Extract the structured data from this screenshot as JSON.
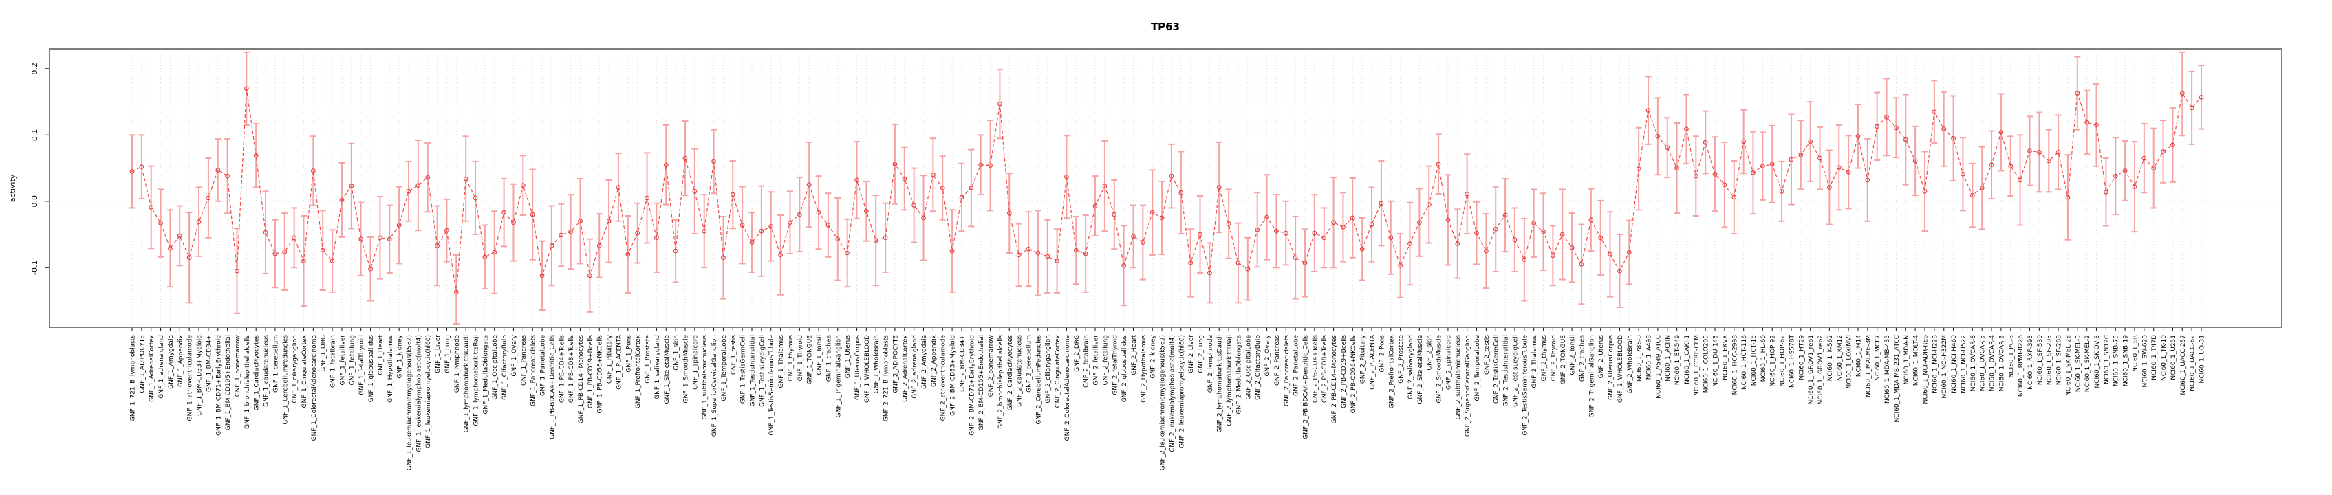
{
  "title": "TP63",
  "y_axis": {
    "label": "activity",
    "tick_labels": [
      "0.2",
      "0.1",
      "0.0",
      "-0.1"
    ],
    "tick_values": [
      0.2,
      0.1,
      0.0,
      -0.1
    ]
  },
  "style": {
    "line_color": "#ee4b4b",
    "point_color": "#e24646",
    "error_bar_color": "#f5a2a2",
    "grid_color": "#dcdcdc",
    "zero_line_color": "#c8c8c8",
    "frame_color": "#7d7d7d",
    "background": "#ffffff"
  },
  "chart_data": {
    "type": "line",
    "title": "TP63",
    "xlabel": "",
    "ylabel": "activity",
    "ylim": [
      -0.19,
      0.23
    ],
    "grid": "vertical-dotted-per-category-plus-zero-line",
    "legend_position": "none",
    "point_style": "open-circle-with-error-bars-dashed-connecting-line",
    "category_groups": [
      {
        "prefix": "GNF_1_",
        "tissue_set": "gnf"
      },
      {
        "prefix": "GNF_2_",
        "tissue_set": "gnf"
      },
      {
        "prefix": "NCI60_1_",
        "tissue_set": "nci60"
      }
    ],
    "tissue_sets": {
      "gnf": [
        "721_B_lymphoblasts",
        "ADIPOCYTE",
        "AdrenalCortex",
        "adrenalgland",
        "Amygdala",
        "Appendix",
        "atrioventricularnode",
        "BM-CD33+Myeloid",
        "BM-CD34+",
        "BM-CD71+EarlyErythroid",
        "BM-CD105+Endothelial",
        "bonemarrow",
        "bronchialepithelialcells",
        "CardiacMyocytes",
        "caudatenucleus",
        "cerebellum",
        "CerebellumPeduncles",
        "ciliaryganglion",
        "CingulateCortex",
        "ColorectalAdenocarcinoma",
        "DRG",
        "fetalbrain",
        "fetalliver",
        "fetallung",
        "fetalThyroid",
        "globuspallidus",
        "Heart",
        "Hypothalamus",
        "kidney",
        "leukemiachronicmyelogenous(k562)",
        "leukemialymphoblastic(molt4)",
        "leukemiapromyelocytic(hl60)",
        "Liver",
        "Lung",
        "lymphnode",
        "lymphomaburkittsDaudi",
        "lymphomaburkittsRaji",
        "MedullaOblongata",
        "OccipitalLobe",
        "OlfactoryBulb",
        "Ovary",
        "Pancreas",
        "PancreaticIslets",
        "ParietalLobe",
        "PB-BDCA4+Dentritic_Cells",
        "PB-CD4+Tcells",
        "PB-CD8+Tcells",
        "PB-CD14+Monocytes",
        "PB-CD19+Bcells",
        "PB-CD56+NKCells",
        "Pituitary",
        "PLACENTA",
        "Pons",
        "PrefrontalCortex",
        "Prostate",
        "salivarygland",
        "SkeletalMuscle",
        "skin",
        "SmoothMuscle",
        "spinalcord",
        "subthalamicnucleus",
        "SuperiorCervicalGanglion",
        "TemporalLobe",
        "testis",
        "TestisGermCell",
        "TestisInterstitial",
        "TestisLeydigCell",
        "TestisSeminiferousTubule",
        "Thalamus",
        "thymus",
        "Thyroid",
        "TONGUE",
        "Tonsil",
        "trachea",
        "TrigeminalGanglion",
        "Uterus",
        "UterusCorpus",
        "WHOLEBLOOD",
        "WholeBrain"
      ],
      "nci60": [
        "786-0",
        "A498",
        "A549_ATCC",
        "ACHN",
        "BT-549",
        "CAKI-1",
        "CCRF-CEM",
        "COLO205",
        "DU-145",
        "EKVX",
        "HCC-2998",
        "HCT-116",
        "HCT-15",
        "HL-60",
        "HOP-92",
        "HOP-62",
        "HS578T",
        "HT29",
        "IGROV1_rep1",
        "IGROV1_rep2",
        "K-562",
        "KM12",
        "LOXIMVI",
        "M14",
        "MALME-3M",
        "MCF7",
        "MDA-MB-435",
        "MDA-MB-231_ATCC",
        "MDA-N",
        "MOLT-4",
        "NCI-ADR-RES",
        "NCI-H226",
        "NCI-H322M",
        "NCI-H460",
        "NCI-H522",
        "OVCAR-8",
        "OVCAR-5",
        "OVCAR-4",
        "OVCAR-3",
        "PC-3",
        "RPMI-8226",
        "RXF-393",
        "SF-539",
        "SF-295",
        "SF-268",
        "SK-MEL-28",
        "SK-MEL-5",
        "SK-MEL-2",
        "SK-OV-3",
        "SN12C",
        "SNB-75",
        "SNB-19",
        "SR",
        "SW-620",
        "T47D",
        "TK-10",
        "U251",
        "UACC-257",
        "UACC-62",
        "UO-31"
      ]
    },
    "values": [
      0.045,
      0.052,
      -0.009,
      -0.033,
      -0.071,
      -0.052,
      -0.085,
      -0.031,
      0.005,
      0.047,
      0.038,
      -0.105,
      0.17,
      0.069,
      -0.047,
      -0.079,
      -0.076,
      -0.055,
      -0.09,
      0.046,
      -0.074,
      -0.09,
      0.002,
      0.023,
      -0.057,
      -0.102,
      -0.055,
      -0.057,
      -0.036,
      0.015,
      0.024,
      0.036,
      -0.067,
      -0.044,
      -0.137,
      0.034,
      0.005,
      -0.084,
      -0.077,
      -0.017,
      -0.032,
      0.024,
      -0.02,
      -0.112,
      -0.067,
      -0.051,
      -0.046,
      -0.03,
      -0.112,
      -0.067,
      -0.03,
      0.021,
      -0.08,
      -0.048,
      0.005,
      -0.055,
      0.055,
      -0.075,
      0.065,
      0.015,
      -0.045,
      0.06,
      -0.085,
      0.01,
      -0.036,
      -0.062,
      -0.045,
      -0.038,
      -0.081,
      -0.032,
      -0.02,
      0.025,
      -0.017,
      -0.036,
      -0.057,
      -0.078,
      0.032,
      -0.015,
      -0.059,
      -0.055,
      0.056,
      0.034,
      -0.006,
      -0.025,
      0.04,
      0.02,
      -0.075,
      0.006,
      0.02,
      0.055,
      0.054,
      0.147,
      -0.018,
      -0.081,
      -0.072,
      -0.078,
      -0.083,
      -0.09,
      0.037,
      -0.074,
      -0.079,
      -0.007,
      0.023,
      -0.02,
      -0.097,
      -0.053,
      -0.062,
      -0.017,
      -0.025,
      0.038,
      0.013,
      -0.093,
      -0.05,
      -0.108,
      0.021,
      -0.034,
      -0.093,
      -0.102,
      -0.043,
      -0.024,
      -0.045,
      -0.048,
      -0.085,
      -0.093,
      -0.048,
      -0.055,
      -0.032,
      -0.039,
      -0.025,
      -0.072,
      -0.035,
      -0.003,
      -0.055,
      -0.097,
      -0.064,
      -0.032,
      -0.005,
      0.056,
      -0.028,
      -0.064,
      0.011,
      -0.048,
      -0.075,
      -0.042,
      -0.021,
      -0.058,
      -0.088,
      -0.033,
      -0.046,
      -0.082,
      -0.05,
      -0.07,
      -0.095,
      -0.028,
      -0.055,
      -0.08,
      -0.105,
      -0.077,
      0.049,
      0.137,
      0.098,
      0.081,
      0.05,
      0.109,
      0.038,
      0.089,
      0.041,
      0.025,
      0.006,
      0.09,
      0.043,
      0.053,
      0.056,
      0.015,
      0.063,
      0.07,
      0.09,
      0.065,
      0.021,
      0.051,
      0.044,
      0.098,
      0.032,
      0.113,
      0.127,
      0.111,
      0.093,
      0.061,
      0.015,
      0.135,
      0.109,
      0.095,
      0.041,
      0.009,
      0.02,
      0.055,
      0.104,
      0.053,
      0.032,
      0.076,
      0.074,
      0.061,
      0.074,
      0.006,
      0.163,
      0.119,
      0.115,
      0.014,
      0.038,
      0.046,
      0.022,
      0.065,
      0.05,
      0.075,
      0.085,
      0.163,
      0.141,
      0.157
    ],
    "errors": [
      0.055,
      0.048,
      0.062,
      0.051,
      0.058,
      0.045,
      0.068,
      0.052,
      0.06,
      0.047,
      0.056,
      0.064,
      0.055,
      0.048,
      0.062,
      0.051,
      0.058,
      0.045,
      0.068,
      0.052,
      0.06,
      0.047,
      0.056,
      0.064,
      0.055,
      0.048,
      0.062,
      0.051,
      0.058,
      0.045,
      0.068,
      0.052,
      0.06,
      0.047,
      0.056,
      0.064,
      0.055,
      0.048,
      0.062,
      0.051,
      0.058,
      0.045,
      0.068,
      0.052,
      0.06,
      0.047,
      0.056,
      0.064,
      0.055,
      0.048,
      0.062,
      0.051,
      0.058,
      0.045,
      0.068,
      0.052,
      0.06,
      0.047,
      0.056,
      0.064,
      0.055,
      0.048,
      0.062,
      0.051,
      0.058,
      0.045,
      0.068,
      0.052,
      0.06,
      0.047,
      0.056,
      0.064,
      0.055,
      0.048,
      0.062,
      0.051,
      0.058,
      0.045,
      0.068,
      0.052,
      0.06,
      0.047,
      0.056,
      0.064,
      0.055,
      0.048,
      0.062,
      0.051,
      0.058,
      0.045,
      0.068,
      0.052,
      0.06,
      0.047,
      0.056,
      0.064,
      0.055,
      0.048,
      0.062,
      0.051,
      0.058,
      0.045,
      0.068,
      0.052,
      0.06,
      0.047,
      0.056,
      0.064,
      0.055,
      0.048,
      0.062,
      0.051,
      0.058,
      0.045,
      0.068,
      0.052,
      0.06,
      0.047,
      0.056,
      0.064,
      0.055,
      0.048,
      0.062,
      0.051,
      0.058,
      0.045,
      0.068,
      0.052,
      0.06,
      0.047,
      0.056,
      0.064,
      0.055,
      0.048,
      0.062,
      0.051,
      0.058,
      0.045,
      0.068,
      0.052,
      0.06,
      0.047,
      0.056,
      0.064,
      0.055,
      0.048,
      0.062,
      0.051,
      0.058,
      0.045,
      0.068,
      0.052,
      0.06,
      0.047,
      0.056,
      0.064,
      0.055,
      0.048,
      0.062,
      0.051,
      0.058,
      0.045,
      0.068,
      0.052,
      0.06,
      0.047,
      0.056,
      0.064,
      0.055,
      0.048,
      0.062,
      0.051,
      0.058,
      0.045,
      0.068,
      0.052,
      0.06,
      0.047,
      0.056,
      0.064,
      0.055,
      0.048,
      0.062,
      0.051,
      0.058,
      0.045,
      0.068,
      0.052,
      0.06,
      0.047,
      0.056,
      0.064,
      0.055,
      0.048,
      0.062,
      0.051,
      0.058,
      0.045,
      0.068,
      0.052,
      0.06,
      0.047,
      0.056,
      0.064,
      0.055,
      0.048,
      0.062,
      0.051,
      0.058,
      0.045,
      0.068,
      0.052,
      0.06,
      0.047,
      0.056,
      0.064,
      0.055,
      0.048
    ]
  }
}
